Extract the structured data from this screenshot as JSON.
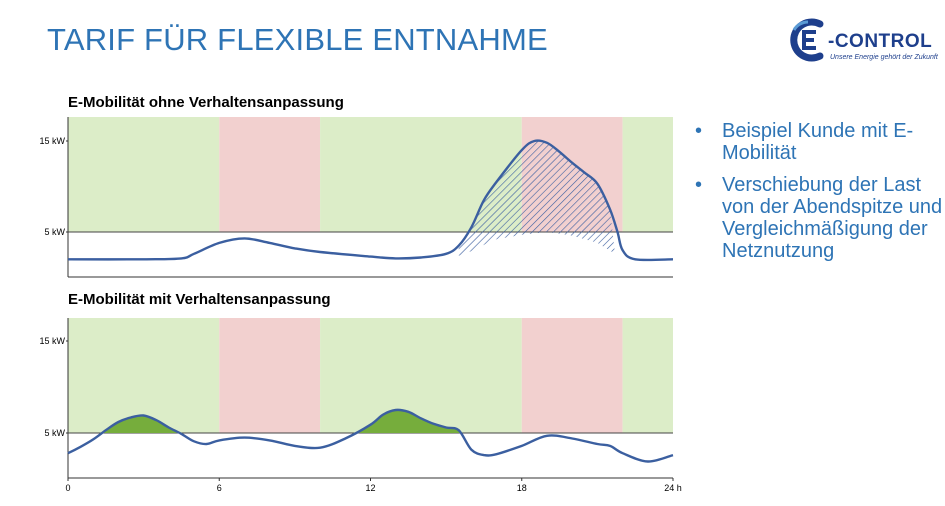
{
  "slide": {
    "title": "TARIF FÜR FLEXIBLE ENTNAHME"
  },
  "logo": {
    "text": "-CONTROL",
    "tagline": "Unsere Energie gehört der Zukunft"
  },
  "bullets": [
    "Beispiel Kunde mit E-Mobilität",
    "Verschiebung der Last von der Abendspitze und Vergleichmäßigung der Netznutzung"
  ],
  "colors": {
    "accent": "#2e74b5",
    "logo_blue": "#1e3f8c",
    "green_band": "#dcedc8",
    "red_band": "#f2d0cf",
    "curve": "#3b5fa0",
    "fill_green": "#76ad3c",
    "hatch": "#3b5fa0"
  },
  "chart_data": [
    {
      "type": "line",
      "title": "E-Mobilität ohne Verhaltensanpassung",
      "xlim": [
        0,
        24
      ],
      "ylim": [
        0,
        17
      ],
      "yticks": [
        {
          "value": 5,
          "label": "5 kW"
        },
        {
          "value": 15,
          "label": "15 kW"
        }
      ],
      "threshold": 5,
      "bands": [
        {
          "from": 0,
          "to": 6,
          "type": "green"
        },
        {
          "from": 6,
          "to": 10,
          "type": "red"
        },
        {
          "from": 10,
          "to": 18,
          "type": "green"
        },
        {
          "from": 18,
          "to": 22,
          "type": "red"
        },
        {
          "from": 22,
          "to": 24,
          "type": "green"
        }
      ],
      "series": [
        {
          "x": [
            0,
            3,
            4.5,
            5,
            6,
            7,
            8,
            9,
            10,
            12,
            13,
            14,
            15,
            15.5,
            16,
            16.5,
            17,
            18,
            18.5,
            19,
            19.5,
            20,
            20.5,
            21,
            21.5,
            21.8,
            22,
            22.5,
            24
          ],
          "y": [
            2,
            2,
            2.1,
            2.6,
            3.8,
            4.3,
            3.8,
            3.2,
            2.8,
            2.3,
            2.1,
            2.2,
            2.6,
            3.5,
            5.5,
            8.5,
            10.5,
            14,
            15,
            14.8,
            13.8,
            12.6,
            11.5,
            10.3,
            7.5,
            5,
            3,
            2,
            2
          ]
        }
      ],
      "hatched_region": {
        "x": [
          15.5,
          16,
          16.5,
          17,
          18,
          19,
          20,
          21,
          21.7
        ],
        "y": [
          2.4,
          2.9,
          3.6,
          4.2,
          4.7,
          5.0,
          4.6,
          3.8,
          2.6
        ]
      }
    },
    {
      "type": "line",
      "title": "E-Mobilität mit Verhaltensanpassung",
      "xlim": [
        0,
        24
      ],
      "ylim": [
        0,
        17
      ],
      "xticks": [
        {
          "value": 0,
          "label": "0"
        },
        {
          "value": 6,
          "label": "6"
        },
        {
          "value": 12,
          "label": "12"
        },
        {
          "value": 18,
          "label": "18"
        },
        {
          "value": 24,
          "label": "24 h"
        }
      ],
      "yticks": [
        {
          "value": 5,
          "label": "5 kW"
        },
        {
          "value": 15,
          "label": "15 kW"
        }
      ],
      "threshold": 5,
      "bands": [
        {
          "from": 0,
          "to": 6,
          "type": "green"
        },
        {
          "from": 6,
          "to": 10,
          "type": "red"
        },
        {
          "from": 10,
          "to": 18,
          "type": "green"
        },
        {
          "from": 18,
          "to": 22,
          "type": "red"
        },
        {
          "from": 22,
          "to": 24,
          "type": "green"
        }
      ],
      "series": [
        {
          "x": [
            0,
            0.5,
            1,
            1.5,
            2,
            2.5,
            3,
            3.5,
            4,
            4.5,
            5,
            5.5,
            6,
            7,
            8,
            9,
            10,
            11,
            12,
            12.5,
            13,
            13.5,
            14,
            14.5,
            15,
            15.5,
            16,
            16.5,
            17,
            18,
            19,
            20,
            21,
            21.5,
            22,
            23,
            24
          ],
          "y": [
            2.8,
            3.5,
            4.3,
            5.3,
            6.2,
            6.7,
            6.9,
            6.4,
            5.6,
            4.9,
            4.1,
            3.8,
            4.2,
            4.5,
            4.2,
            3.6,
            3.4,
            4.4,
            5.9,
            7.0,
            7.5,
            7.3,
            6.6,
            6.0,
            5.6,
            5.3,
            3.2,
            2.6,
            2.7,
            3.6,
            4.7,
            4.4,
            3.8,
            3.6,
            2.8,
            1.9,
            2.6
          ]
        }
      ],
      "filled_above_threshold": true
    }
  ]
}
